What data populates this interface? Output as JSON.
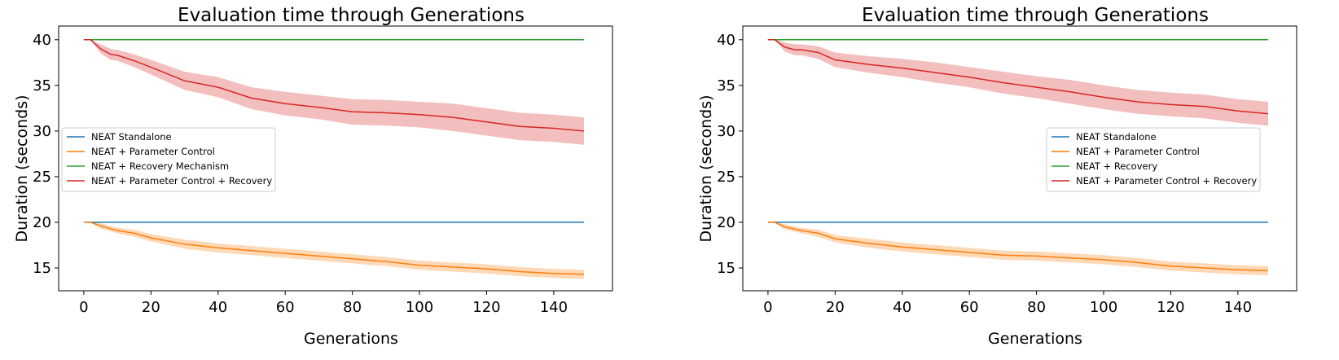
{
  "chart_data": [
    {
      "type": "line",
      "title": "Evaluation time through Generations",
      "xlabel": "Generations",
      "ylabel": "Duration (seconds)",
      "xlim": [
        -7.5,
        157.5
      ],
      "ylim": [
        12.5,
        41.5
      ],
      "xticks": [
        0,
        20,
        40,
        60,
        80,
        100,
        120,
        140
      ],
      "yticks": [
        15,
        20,
        25,
        30,
        35,
        40
      ],
      "legend_position": "center-left",
      "grid": false,
      "series": [
        {
          "name": "NEAT Standalone",
          "color": "#1f77b4",
          "x": [
            0,
            149
          ],
          "y": [
            20,
            20
          ]
        },
        {
          "name": "NEAT + Parameter Control",
          "color": "#ff7f0e",
          "x": [
            0,
            2,
            5,
            10,
            15,
            20,
            30,
            40,
            50,
            60,
            70,
            80,
            90,
            100,
            110,
            120,
            130,
            140,
            149
          ],
          "y": [
            20,
            20,
            19.6,
            19.1,
            18.8,
            18.3,
            17.6,
            17.2,
            16.9,
            16.6,
            16.3,
            16.0,
            15.7,
            15.3,
            15.1,
            14.9,
            14.6,
            14.4,
            14.3
          ],
          "band": [
            0,
            0,
            0.3,
            0.3,
            0.4,
            0.4,
            0.5,
            0.5,
            0.5,
            0.5,
            0.5,
            0.5,
            0.5,
            0.5,
            0.5,
            0.5,
            0.5,
            0.5,
            0.5
          ]
        },
        {
          "name": "NEAT + Recovery Mechanism",
          "color": "#2ca02c",
          "x": [
            0,
            149
          ],
          "y": [
            40,
            40
          ]
        },
        {
          "name": "NEAT + Parameter Control + Recovery",
          "color": "#d62728",
          "x": [
            0,
            2,
            5,
            8,
            10,
            15,
            20,
            30,
            40,
            50,
            60,
            70,
            80,
            90,
            100,
            110,
            120,
            130,
            140,
            149
          ],
          "y": [
            40,
            40,
            39.0,
            38.4,
            38.3,
            37.7,
            37.0,
            35.5,
            34.8,
            33.6,
            33.0,
            32.6,
            32.1,
            32.0,
            31.8,
            31.5,
            31.0,
            30.5,
            30.3,
            30.0
          ],
          "band": [
            0,
            0,
            0.5,
            0.6,
            0.6,
            0.7,
            0.8,
            1.0,
            1.1,
            1.2,
            1.3,
            1.3,
            1.4,
            1.4,
            1.4,
            1.5,
            1.5,
            1.5,
            1.5,
            1.5
          ]
        }
      ]
    },
    {
      "type": "line",
      "title": "Evaluation time through Generations",
      "xlabel": "Generations",
      "ylabel": "Duration (seconds)",
      "xlim": [
        -7.5,
        157.5
      ],
      "ylim": [
        12.5,
        41.5
      ],
      "xticks": [
        0,
        20,
        40,
        60,
        80,
        100,
        120,
        140
      ],
      "yticks": [
        15,
        20,
        25,
        30,
        35,
        40
      ],
      "legend_position": "center-right",
      "grid": false,
      "series": [
        {
          "name": "NEAT Standalone",
          "color": "#1f77b4",
          "x": [
            0,
            149
          ],
          "y": [
            20,
            20
          ]
        },
        {
          "name": "NEAT + Parameter Control",
          "color": "#ff7f0e",
          "x": [
            0,
            2,
            5,
            10,
            15,
            20,
            30,
            40,
            50,
            60,
            70,
            80,
            90,
            100,
            110,
            120,
            130,
            140,
            149
          ],
          "y": [
            20,
            20,
            19.5,
            19.1,
            18.8,
            18.2,
            17.7,
            17.3,
            17.0,
            16.7,
            16.4,
            16.3,
            16.1,
            15.9,
            15.6,
            15.2,
            15.0,
            14.8,
            14.7
          ],
          "band": [
            0,
            0,
            0.3,
            0.3,
            0.4,
            0.4,
            0.5,
            0.5,
            0.5,
            0.5,
            0.5,
            0.5,
            0.5,
            0.5,
            0.5,
            0.5,
            0.5,
            0.5,
            0.5
          ]
        },
        {
          "name": "NEAT + Recovery",
          "color": "#2ca02c",
          "x": [
            0,
            149
          ],
          "y": [
            40,
            40
          ]
        },
        {
          "name": "NEAT + Parameter Control + Recovery",
          "color": "#d62728",
          "x": [
            0,
            2,
            5,
            8,
            10,
            15,
            20,
            30,
            40,
            50,
            60,
            70,
            80,
            90,
            100,
            110,
            120,
            130,
            140,
            149
          ],
          "y": [
            40,
            40,
            39.2,
            38.9,
            38.9,
            38.6,
            37.8,
            37.3,
            36.9,
            36.4,
            35.9,
            35.3,
            34.8,
            34.3,
            33.7,
            33.2,
            32.9,
            32.7,
            32.2,
            31.9
          ],
          "band": [
            0,
            0,
            0.5,
            0.6,
            0.6,
            0.7,
            0.8,
            0.9,
            1.0,
            1.1,
            1.1,
            1.2,
            1.2,
            1.3,
            1.3,
            1.3,
            1.3,
            1.3,
            1.3,
            1.3
          ]
        }
      ]
    }
  ]
}
